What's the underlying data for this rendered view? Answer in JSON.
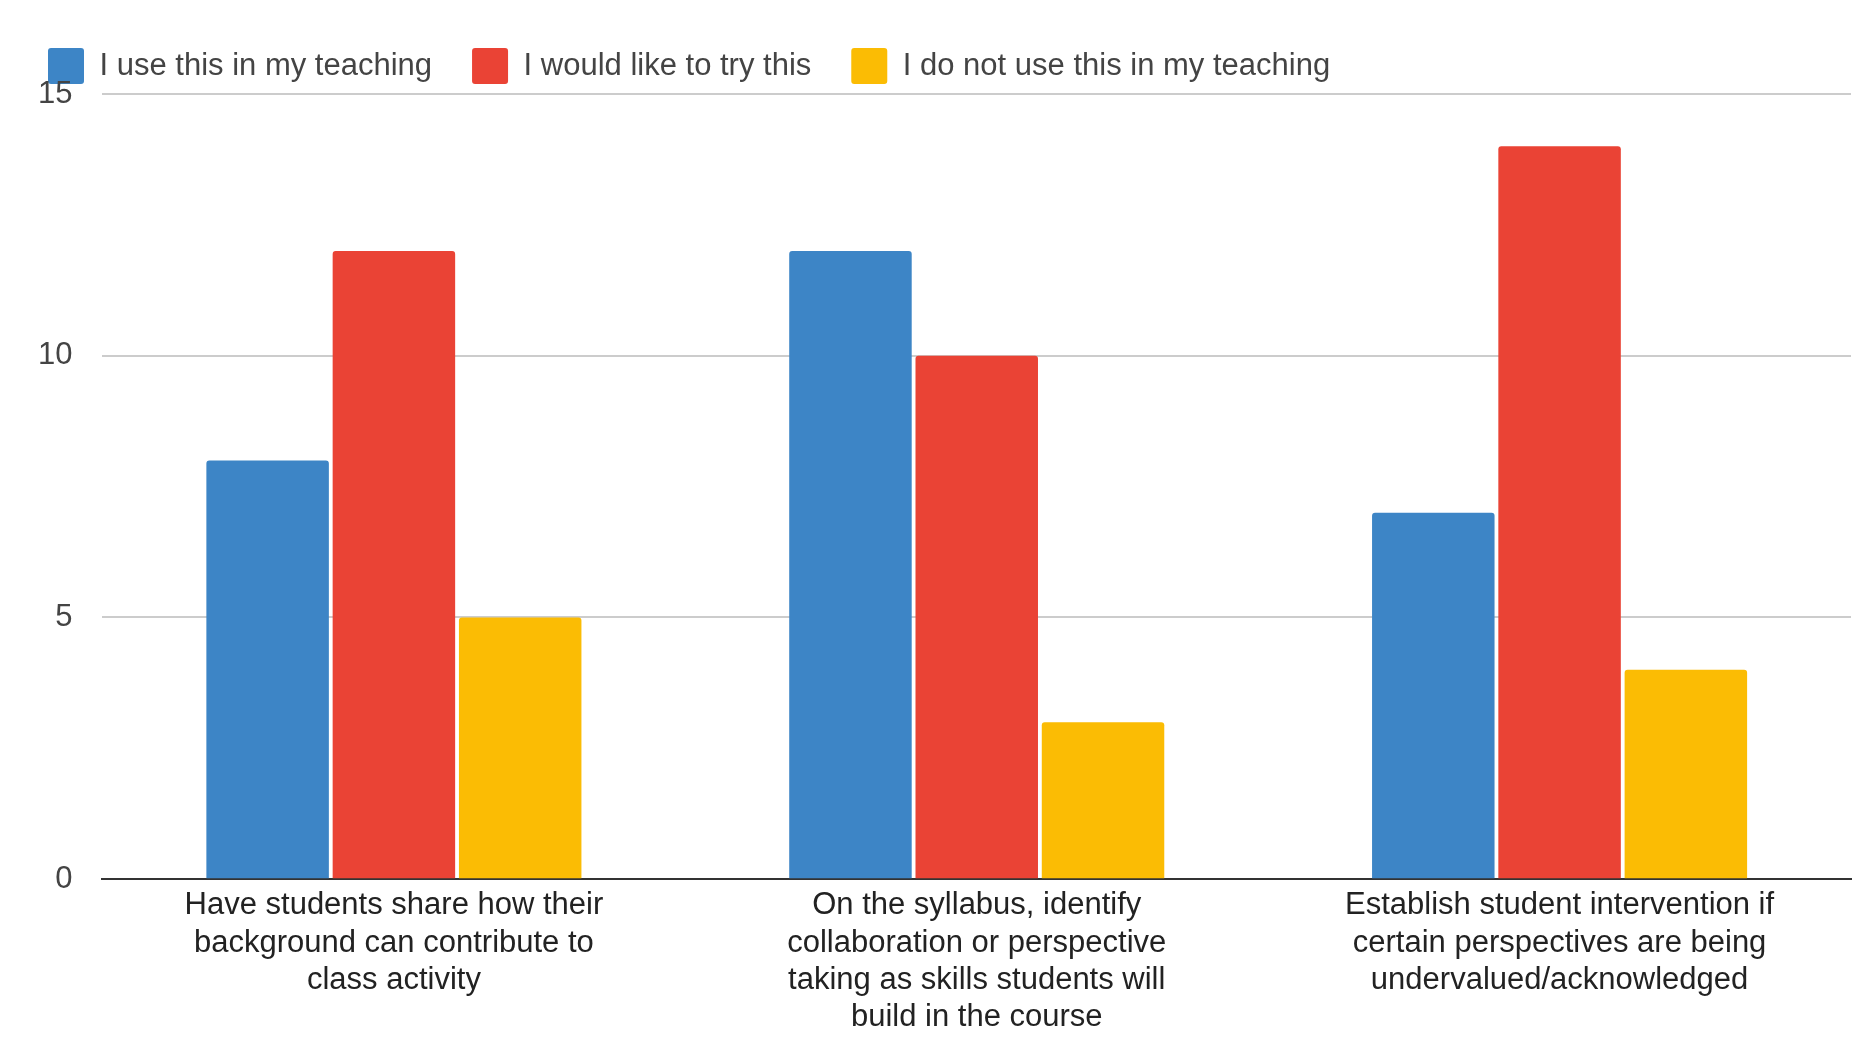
{
  "chart_data": {
    "type": "bar",
    "categories": [
      "Have students share how their background can contribute to class activity",
      "On the syllabus, identify collaboration or perspective taking as skills students will build in the course",
      "Establish student intervention if certain perspectives are being undervalued/acknowledged"
    ],
    "series": [
      {
        "name": "I use this in my teaching",
        "color": "#3d85c6",
        "values": [
          8,
          12,
          7
        ]
      },
      {
        "name": "I would like to try this",
        "color": "#ea4335",
        "values": [
          12,
          10,
          14
        ]
      },
      {
        "name": "I do not use this in my teaching",
        "color": "#fbbc04",
        "values": [
          5,
          3,
          4
        ]
      }
    ],
    "ylim": [
      0,
      15
    ],
    "yticks": [
      0,
      5,
      10,
      15
    ],
    "grid": "y",
    "legend": "top left"
  }
}
